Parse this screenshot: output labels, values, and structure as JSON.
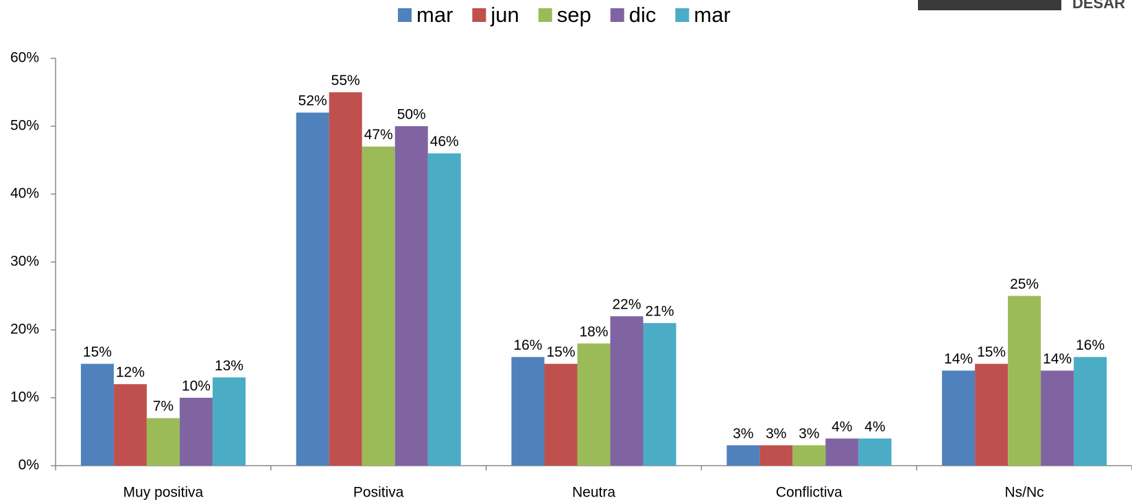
{
  "logo": "DESAR",
  "chart_data": {
    "type": "bar",
    "categories": [
      "Muy positiva",
      "Positiva",
      "Neutra",
      "Conflictiva",
      "Ns/Nc"
    ],
    "series": [
      {
        "name": "mar",
        "color": "#4f81bd",
        "values": [
          15,
          52,
          16,
          3,
          14
        ],
        "value_labels": [
          "15%",
          "52%",
          "16%",
          "3%",
          "14%"
        ]
      },
      {
        "name": "jun",
        "color": "#c0504d",
        "values": [
          12,
          55,
          15,
          3,
          15
        ],
        "value_labels": [
          "12%",
          "55%",
          "15%",
          "3%",
          "15%"
        ]
      },
      {
        "name": "sep",
        "color": "#9bbb59",
        "values": [
          7,
          47,
          18,
          3,
          25
        ],
        "value_labels": [
          "7%",
          "47%",
          "18%",
          "3%",
          "25%"
        ]
      },
      {
        "name": "dic",
        "color": "#8064a2",
        "values": [
          10,
          50,
          22,
          4,
          14
        ],
        "value_labels": [
          "10%",
          "50%",
          "22%",
          "4%",
          "14%"
        ]
      },
      {
        "name": "mar",
        "color": "#4bacc6",
        "values": [
          13,
          46,
          21,
          4,
          16
        ],
        "value_labels": [
          "13%",
          "46%",
          "21%",
          "4%",
          "16%"
        ]
      }
    ],
    "ylim": [
      0,
      60
    ],
    "yticks": [
      {
        "value": 0,
        "label": "0%"
      },
      {
        "value": 10,
        "label": "10%"
      },
      {
        "value": 20,
        "label": "20%"
      },
      {
        "value": 30,
        "label": "30%"
      },
      {
        "value": 40,
        "label": "40%"
      },
      {
        "value": 50,
        "label": "50%"
      },
      {
        "value": 60,
        "label": "60%"
      }
    ],
    "legend": "top"
  }
}
